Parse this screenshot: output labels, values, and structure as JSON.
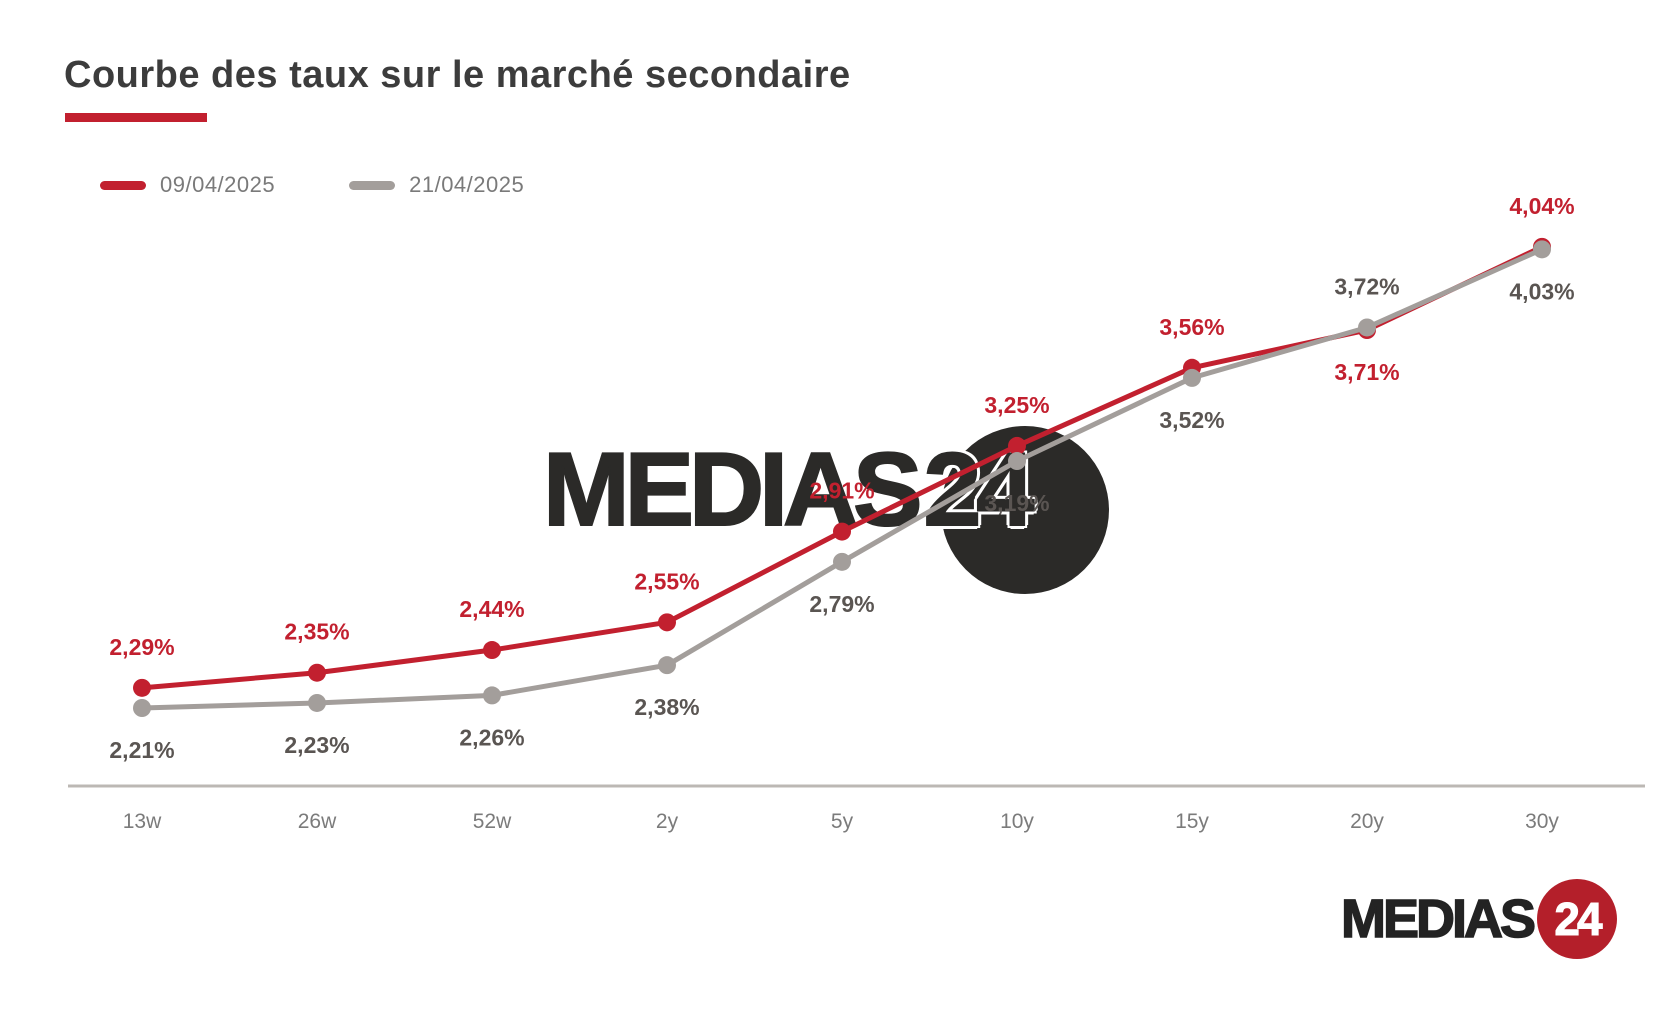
{
  "title": "Courbe des taux sur le marché secondaire",
  "legend": {
    "items": [
      {
        "label": "09/04/2025",
        "color": "#c2202f"
      },
      {
        "label": "21/04/2025",
        "color": "#a39e9b"
      }
    ]
  },
  "watermark": {
    "name": "MEDIAS",
    "number": "24"
  },
  "footer_logo": {
    "name": "MEDIAS",
    "number": "24"
  },
  "colors": {
    "accent_red": "#c2202f",
    "line_gray": "#a39e9b",
    "axis_line": "#bcb8b4",
    "tick_label": "#7b7b7b",
    "value_label_gray": "#5a5552",
    "title_text": "#3c3c3c",
    "watermark_dark": "#2b2a28",
    "logo_red": "#b41f2a"
  },
  "chart_data": {
    "type": "line",
    "categories": [
      "13w",
      "26w",
      "52w",
      "2y",
      "5y",
      "10y",
      "15y",
      "20y",
      "30y"
    ],
    "series": [
      {
        "name": "09/04/2025",
        "color": "#c2202f",
        "label_color": "#c2202f",
        "values": [
          2.29,
          2.35,
          2.44,
          2.55,
          2.91,
          3.25,
          3.56,
          3.71,
          4.04
        ],
        "value_labels": [
          "2,29%",
          "2,35%",
          "2,44%",
          "2,55%",
          "2,91%",
          "3,25%",
          "3,56%",
          "3,71%",
          "4,04%"
        ]
      },
      {
        "name": "21/04/2025",
        "color": "#a39e9b",
        "label_color": "#5a5552",
        "values": [
          2.21,
          2.23,
          2.26,
          2.38,
          2.79,
          3.19,
          3.52,
          3.72,
          4.03
        ],
        "value_labels": [
          "2,21%",
          "2,23%",
          "2,26%",
          "2,38%",
          "2,79%",
          "3,19%",
          "3,52%",
          "3,72%",
          "4,03%"
        ]
      }
    ],
    "ylim": [
      2.21,
      4.04
    ],
    "grid": false,
    "legend_position": "top-left",
    "x_axis_line": true,
    "value_label_format": "percent-fr"
  }
}
